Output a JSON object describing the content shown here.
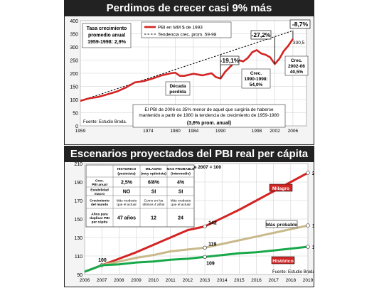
{
  "chart_data": [
    {
      "type": "line",
      "title": "Perdimos de crecer casi 9% más",
      "x_ticks": [
        1959,
        1974,
        1980,
        1984,
        1990,
        1998,
        2002,
        2006
      ],
      "ylim": [
        0,
        400
      ],
      "y_ticks": [
        0,
        50,
        100,
        150,
        200,
        250,
        300,
        350,
        400
      ],
      "grid": true,
      "legend_position": "top-center",
      "series": [
        {
          "name": "PBI en MM $ de 1993",
          "color": "#d42323",
          "x": [
            1959,
            1961,
            1963,
            1965,
            1967,
            1969,
            1971,
            1973,
            1975,
            1977,
            1979,
            1980,
            1981,
            1982,
            1984,
            1986,
            1988,
            1989,
            1990,
            1991,
            1993,
            1994,
            1995,
            1996,
            1997,
            1998,
            1999,
            2000,
            2001,
            2002,
            2003,
            2004,
            2005,
            2006
          ],
          "y": [
            95,
            105,
            110,
            120,
            130,
            145,
            165,
            170,
            180,
            192,
            200,
            202,
            190,
            190,
            198,
            192,
            200,
            185,
            180,
            205,
            240,
            250,
            245,
            258,
            280,
            288,
            275,
            270,
            260,
            235,
            255,
            285,
            305,
            330.5
          ]
        },
        {
          "name": "Tendencia crec. prom. 59-98",
          "color": "#111111",
          "dashed": true,
          "x": [
            1959,
            2006
          ],
          "y": [
            95,
            362
          ]
        }
      ],
      "annotations": {
        "box_rate": [
          "Tasa crecimiento",
          "promedio anual",
          "1959-1998: 2,9%"
        ],
        "gap_1990": "-19,1%",
        "gap_2002": "-27,2%",
        "gap_2006": "-8,7%",
        "value_2006": "330,5",
        "decada": [
          "Década",
          "perdida"
        ],
        "crec_9098": [
          "Crec.",
          "1990-1998:",
          "54,0%"
        ],
        "crec_0206": [
          "Crec.",
          "2002-06",
          "40,5%"
        ],
        "note": [
          "El PBI de 2006 es 35% menor de aquel que surgiría de haberse",
          "mantenido a partir de 1980 la tendencia de crecimiento de 1959-1980",
          "(3,6% prom. anual)"
        ],
        "source": "Fuente: Estudio Broda."
      }
    },
    {
      "type": "line",
      "title": "Escenarios proyectados del PBI real per cápita",
      "subtitle": "Base 2007 = 100",
      "x": [
        2006,
        2007,
        2008,
        2009,
        2010,
        2011,
        2012,
        2013,
        2014,
        2015,
        2016,
        2017,
        2018,
        2019
      ],
      "ylim": [
        90,
        210
      ],
      "y_ticks": [
        90,
        110,
        130,
        150,
        170,
        190,
        210
      ],
      "grid": true,
      "series": [
        {
          "name": "Milagro",
          "color": "#d42323",
          "y": [
            93,
            100,
            107,
            114,
            122,
            130,
            138,
            142,
            151,
            160,
            170,
            180,
            190,
            200
          ],
          "labels": {
            "2007": "100",
            "2013": "142",
            "2019": "200"
          }
        },
        {
          "name": "Más probable",
          "color": "#c8b98a",
          "y": [
            93,
            100,
            104,
            108,
            111,
            115,
            117,
            119,
            123,
            127,
            131,
            135,
            139,
            143
          ],
          "labels": {
            "2013": "119",
            "2019": "143"
          }
        },
        {
          "name": "Histórico",
          "color": "#17a84a",
          "y": [
            93,
            100,
            101,
            103,
            104,
            106,
            107,
            109,
            111,
            113,
            114,
            116,
            118,
            120
          ],
          "labels": {
            "2013": "109",
            "2019": "120"
          }
        }
      ],
      "table": {
        "headers": [
          [
            "HISTORICO",
            "(pesimista)"
          ],
          [
            "MILAGRO",
            "(muy optimista)"
          ],
          [
            "MAS PROBABLE",
            "(intermedio)"
          ]
        ],
        "rows": [
          {
            "label": [
              "Crec.",
              "PBI anual"
            ],
            "cells": [
              [
                "2,5%"
              ],
              [
                "6/8%"
              ],
              [
                "4%"
              ]
            ]
          },
          {
            "label": [
              "Estabilidad",
              "macro"
            ],
            "cells": [
              [
                "NO"
              ],
              [
                "SI"
              ],
              [
                "SI"
              ]
            ]
          },
          {
            "label": [
              "Crecimiento",
              "del mundo"
            ],
            "cells": [
              [
                "Más modesto",
                "que el actual"
              ],
              [
                "Como en los",
                "últimos 4 años"
              ],
              [
                "Más modesto",
                "que el actual"
              ]
            ]
          },
          {
            "label": [
              "Años para",
              "duplicar PBI",
              "per cápita"
            ],
            "cells": [
              [
                "47 años"
              ],
              [
                "12"
              ],
              [
                "24"
              ]
            ]
          }
        ]
      },
      "source": "Fuente: Estudio Broda."
    }
  ]
}
